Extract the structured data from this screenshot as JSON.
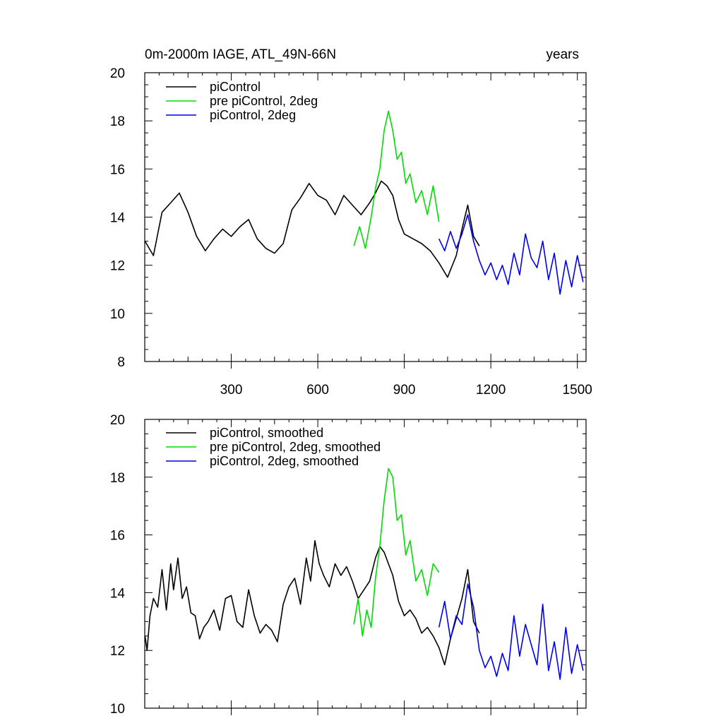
{
  "header": {
    "left_title": "0m-2000m IAGE, ATL_49N-66N",
    "right_title": "years"
  },
  "colors": {
    "black": "#000000",
    "green": "#00dd00",
    "blue": "#0000ee"
  },
  "chart_data": [
    {
      "type": "line",
      "xlim": [
        0,
        1530
      ],
      "ylim": [
        8,
        20
      ],
      "x_ticks": [
        300,
        600,
        900,
        1200,
        1500
      ],
      "x_tick_labels": [
        "300",
        "600",
        "900",
        "1200",
        "1500"
      ],
      "y_ticks": [
        8,
        10,
        12,
        14,
        16,
        18,
        20
      ],
      "y_tick_labels": [
        "8",
        "10",
        "12",
        "14",
        "16",
        "18",
        "20"
      ],
      "legend_position": "top-left",
      "series": [
        {
          "name": "piControl",
          "color": "#000000",
          "x": [
            1,
            30,
            60,
            90,
            120,
            150,
            180,
            210,
            240,
            270,
            300,
            330,
            360,
            390,
            420,
            450,
            480,
            510,
            540,
            570,
            600,
            630,
            660,
            690,
            720,
            750,
            780,
            800,
            820,
            840,
            860,
            880,
            900,
            930,
            960,
            990,
            1020,
            1050,
            1080,
            1100,
            1120,
            1140,
            1160
          ],
          "y": [
            13.0,
            12.4,
            14.2,
            14.6,
            15.0,
            14.2,
            13.2,
            12.6,
            13.1,
            13.5,
            13.2,
            13.6,
            13.9,
            13.1,
            12.7,
            12.5,
            12.9,
            14.3,
            14.8,
            15.4,
            14.9,
            14.7,
            14.1,
            14.9,
            14.5,
            14.1,
            14.6,
            15.0,
            15.5,
            15.3,
            14.9,
            13.9,
            13.3,
            13.1,
            12.9,
            12.6,
            12.1,
            11.5,
            12.4,
            13.5,
            14.5,
            13.2,
            12.8
          ]
        },
        {
          "name": "pre piControl, 2deg",
          "color": "#00dd00",
          "x": [
            725,
            745,
            765,
            785,
            800,
            815,
            830,
            845,
            860,
            875,
            890,
            905,
            920,
            940,
            960,
            980,
            1000,
            1020
          ],
          "y": [
            12.8,
            13.6,
            12.7,
            14.0,
            15.2,
            16.0,
            17.6,
            18.4,
            17.6,
            16.4,
            16.7,
            15.4,
            15.8,
            14.6,
            15.1,
            14.1,
            15.3,
            13.8
          ]
        },
        {
          "name": "piControl, 2deg",
          "color": "#0000ee",
          "x": [
            1020,
            1040,
            1060,
            1080,
            1100,
            1120,
            1140,
            1160,
            1180,
            1200,
            1220,
            1240,
            1260,
            1280,
            1300,
            1320,
            1340,
            1360,
            1380,
            1400,
            1420,
            1440,
            1460,
            1480,
            1500,
            1520
          ],
          "y": [
            13.1,
            12.6,
            13.4,
            12.7,
            13.3,
            14.1,
            13.0,
            12.2,
            11.6,
            12.1,
            11.4,
            12.0,
            11.2,
            12.5,
            11.6,
            13.3,
            12.3,
            11.9,
            13.0,
            11.4,
            12.5,
            10.8,
            12.2,
            11.1,
            12.4,
            11.3
          ]
        }
      ]
    },
    {
      "type": "line",
      "xlim": [
        0,
        1530
      ],
      "ylim": [
        10,
        20
      ],
      "x_ticks": [
        300,
        600,
        900,
        1200,
        1500
      ],
      "y_ticks": [
        10,
        12,
        14,
        16,
        18,
        20
      ],
      "y_tick_labels": [
        "10",
        "12",
        "14",
        "16",
        "18",
        "20"
      ],
      "legend_position": "top-left",
      "series": [
        {
          "name": "piControl, smoothed",
          "color": "#000000",
          "x": [
            1,
            8,
            18,
            30,
            45,
            60,
            75,
            90,
            100,
            115,
            130,
            145,
            160,
            175,
            190,
            205,
            220,
            240,
            260,
            280,
            300,
            320,
            340,
            360,
            380,
            400,
            420,
            440,
            460,
            480,
            500,
            520,
            540,
            560,
            575,
            590,
            605,
            620,
            640,
            660,
            680,
            700,
            720,
            740,
            760,
            780,
            800,
            815,
            830,
            845,
            860,
            880,
            900,
            920,
            940,
            960,
            980,
            1000,
            1020,
            1040,
            1060,
            1080,
            1100,
            1120,
            1140,
            1160
          ],
          "y": [
            12.5,
            12.0,
            13.2,
            13.8,
            13.5,
            14.8,
            13.4,
            15.0,
            14.1,
            15.2,
            13.8,
            14.2,
            13.3,
            13.2,
            12.4,
            12.8,
            13.0,
            13.4,
            12.7,
            13.8,
            13.9,
            13.0,
            12.8,
            14.1,
            13.2,
            12.6,
            12.9,
            12.7,
            12.3,
            13.6,
            14.2,
            14.5,
            13.6,
            15.2,
            14.4,
            15.8,
            15.0,
            14.6,
            14.2,
            15.0,
            14.6,
            14.9,
            14.4,
            13.8,
            14.1,
            14.4,
            15.2,
            15.6,
            15.4,
            15.0,
            14.6,
            13.7,
            13.2,
            13.4,
            13.1,
            12.6,
            12.8,
            12.5,
            12.1,
            11.5,
            12.4,
            13.1,
            13.8,
            14.8,
            13.0,
            12.6
          ]
        },
        {
          "name": "pre piControl, 2deg, smoothed",
          "color": "#00dd00",
          "x": [
            725,
            740,
            755,
            770,
            785,
            800,
            815,
            830,
            845,
            860,
            875,
            890,
            905,
            920,
            940,
            960,
            980,
            1000,
            1020
          ],
          "y": [
            12.9,
            13.8,
            12.5,
            13.4,
            12.8,
            14.5,
            15.6,
            17.2,
            18.3,
            18.0,
            16.5,
            16.7,
            15.3,
            15.8,
            14.4,
            14.8,
            13.9,
            15.0,
            14.7
          ]
        },
        {
          "name": "piControl, 2deg, smoothed",
          "color": "#0000ee",
          "x": [
            1020,
            1040,
            1060,
            1080,
            1100,
            1120,
            1140,
            1160,
            1180,
            1200,
            1220,
            1240,
            1260,
            1280,
            1300,
            1320,
            1340,
            1360,
            1380,
            1400,
            1420,
            1440,
            1460,
            1480,
            1500,
            1520
          ],
          "y": [
            12.8,
            13.7,
            12.4,
            13.2,
            12.9,
            14.3,
            13.5,
            12.0,
            11.4,
            11.8,
            11.1,
            11.9,
            11.3,
            13.2,
            11.8,
            12.9,
            12.2,
            11.5,
            13.6,
            11.3,
            12.3,
            11.0,
            12.8,
            11.2,
            12.2,
            11.3
          ]
        }
      ]
    }
  ]
}
